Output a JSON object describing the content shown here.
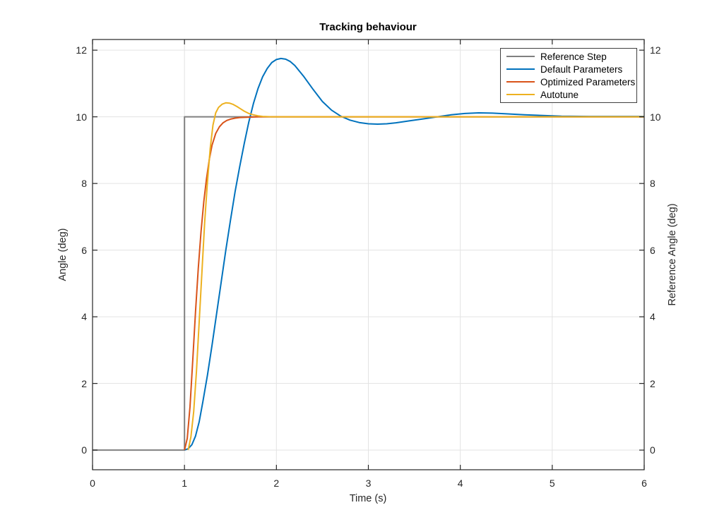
{
  "chart_data": {
    "type": "line",
    "title": "Tracking behaviour",
    "xlabel": "Time (s)",
    "ylabel_left": "Angle (deg)",
    "ylabel_right": "Reference Angle (deg)",
    "xlim": [
      0,
      6
    ],
    "ylim": [
      -0.59,
      12.32
    ],
    "xticks": [
      0,
      1,
      2,
      3,
      4,
      5,
      6
    ],
    "yticks_left": [
      0,
      2,
      4,
      6,
      8,
      10,
      12
    ],
    "yticks_right": [
      0,
      2,
      4,
      6,
      8,
      10,
      12
    ],
    "grid": true,
    "legend_position": "top-right",
    "axis_color": "#262626",
    "grid_color": "#e3e3e3",
    "series": [
      {
        "name": "Reference Step",
        "color": "#808080",
        "points": [
          [
            0,
            0
          ],
          [
            1,
            0
          ],
          [
            1,
            10
          ],
          [
            6,
            10
          ]
        ]
      },
      {
        "name": "Default Parameters",
        "color": "#0072BD",
        "points": [
          [
            1,
            0
          ],
          [
            1.04,
            0.04
          ],
          [
            1.08,
            0.16
          ],
          [
            1.12,
            0.42
          ],
          [
            1.16,
            0.85
          ],
          [
            1.2,
            1.45
          ],
          [
            1.25,
            2.25
          ],
          [
            1.3,
            3.15
          ],
          [
            1.35,
            4.1
          ],
          [
            1.4,
            5.05
          ],
          [
            1.45,
            6.0
          ],
          [
            1.5,
            6.9
          ],
          [
            1.55,
            7.75
          ],
          [
            1.6,
            8.5
          ],
          [
            1.65,
            9.2
          ],
          [
            1.7,
            9.85
          ],
          [
            1.75,
            10.4
          ],
          [
            1.8,
            10.85
          ],
          [
            1.85,
            11.2
          ],
          [
            1.9,
            11.45
          ],
          [
            1.95,
            11.63
          ],
          [
            2.0,
            11.72
          ],
          [
            2.05,
            11.75
          ],
          [
            2.1,
            11.73
          ],
          [
            2.15,
            11.66
          ],
          [
            2.2,
            11.54
          ],
          [
            2.3,
            11.2
          ],
          [
            2.4,
            10.82
          ],
          [
            2.5,
            10.46
          ],
          [
            2.6,
            10.2
          ],
          [
            2.7,
            10.02
          ],
          [
            2.8,
            9.9
          ],
          [
            2.9,
            9.83
          ],
          [
            3.0,
            9.79
          ],
          [
            3.1,
            9.78
          ],
          [
            3.2,
            9.79
          ],
          [
            3.3,
            9.82
          ],
          [
            3.45,
            9.88
          ],
          [
            3.6,
            9.94
          ],
          [
            3.75,
            10.0
          ],
          [
            3.9,
            10.06
          ],
          [
            4.05,
            10.1
          ],
          [
            4.2,
            10.12
          ],
          [
            4.35,
            10.11
          ],
          [
            4.5,
            10.09
          ],
          [
            4.7,
            10.06
          ],
          [
            4.9,
            10.04
          ],
          [
            5.1,
            10.02
          ],
          [
            5.4,
            10.01
          ],
          [
            5.7,
            10.01
          ],
          [
            6,
            10.01
          ]
        ]
      },
      {
        "name": "Optimized Parameters",
        "color": "#D95319",
        "points": [
          [
            1,
            0
          ],
          [
            1.03,
            0.35
          ],
          [
            1.06,
            1.3
          ],
          [
            1.09,
            2.7
          ],
          [
            1.12,
            4.15
          ],
          [
            1.15,
            5.45
          ],
          [
            1.18,
            6.55
          ],
          [
            1.21,
            7.45
          ],
          [
            1.24,
            8.15
          ],
          [
            1.27,
            8.72
          ],
          [
            1.3,
            9.15
          ],
          [
            1.34,
            9.5
          ],
          [
            1.38,
            9.7
          ],
          [
            1.42,
            9.82
          ],
          [
            1.46,
            9.89
          ],
          [
            1.5,
            9.93
          ],
          [
            1.55,
            9.96
          ],
          [
            1.6,
            9.98
          ],
          [
            1.7,
            9.99
          ],
          [
            1.8,
            10
          ],
          [
            2.2,
            10
          ],
          [
            3,
            10
          ],
          [
            6,
            10
          ]
        ]
      },
      {
        "name": "Autotune",
        "color": "#EDB120",
        "points": [
          [
            1.04,
            0
          ],
          [
            1.07,
            0.4
          ],
          [
            1.1,
            1.15
          ],
          [
            1.13,
            2.35
          ],
          [
            1.16,
            3.85
          ],
          [
            1.19,
            5.35
          ],
          [
            1.22,
            6.85
          ],
          [
            1.25,
            8.05
          ],
          [
            1.28,
            9.05
          ],
          [
            1.31,
            9.75
          ],
          [
            1.34,
            10.12
          ],
          [
            1.37,
            10.28
          ],
          [
            1.41,
            10.38
          ],
          [
            1.45,
            10.42
          ],
          [
            1.49,
            10.41
          ],
          [
            1.53,
            10.37
          ],
          [
            1.57,
            10.31
          ],
          [
            1.61,
            10.24
          ],
          [
            1.65,
            10.17
          ],
          [
            1.7,
            10.1
          ],
          [
            1.75,
            10.06
          ],
          [
            1.8,
            10.03
          ],
          [
            1.85,
            10.01
          ],
          [
            1.95,
            10
          ],
          [
            2.5,
            10
          ],
          [
            6,
            10
          ]
        ]
      }
    ]
  }
}
